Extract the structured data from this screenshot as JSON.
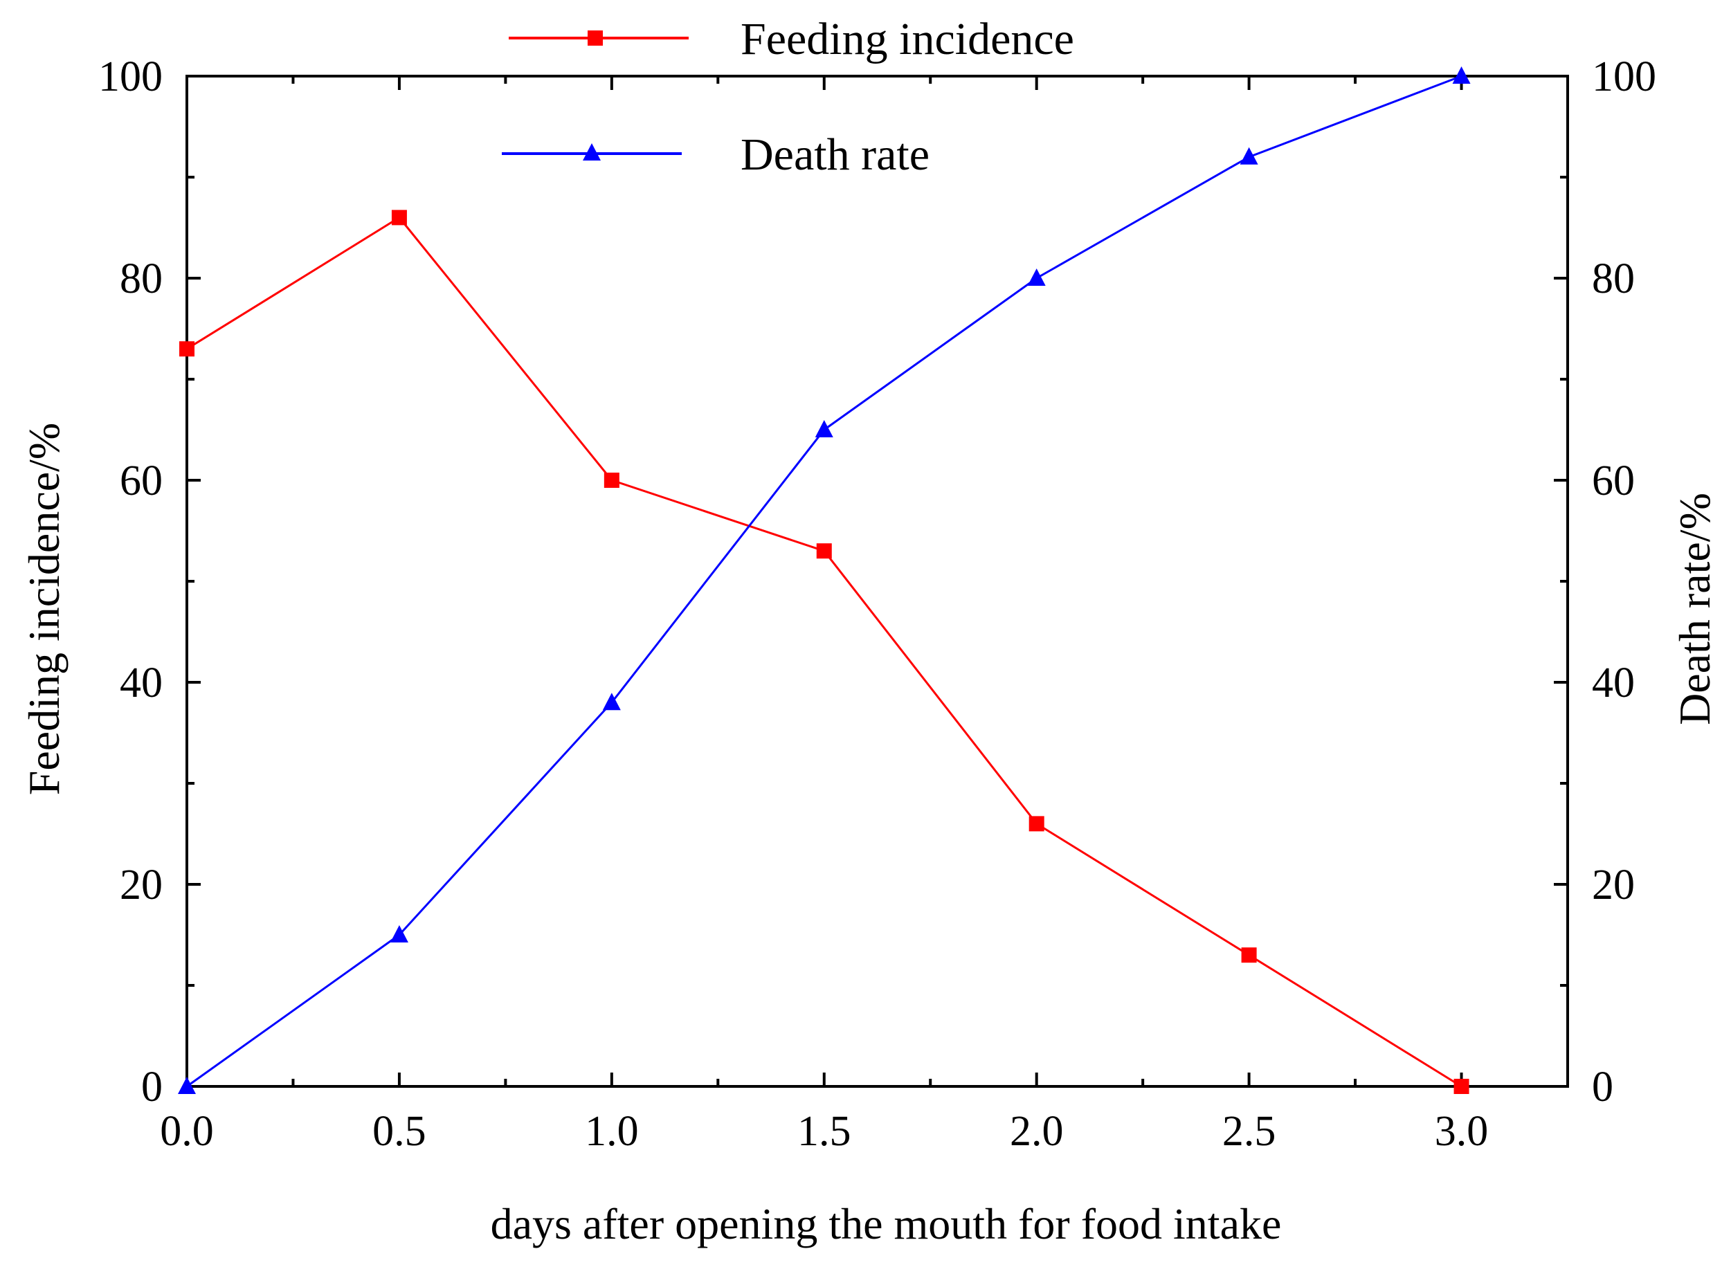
{
  "chart_data": {
    "type": "line",
    "title": "",
    "xlabel": "days after opening the mouth for food intake",
    "ylabel_left": "Feeding incidence/%",
    "ylabel_right": "Death rate/%",
    "x": [
      0.0,
      0.5,
      1.0,
      1.5,
      2.0,
      2.5,
      3.0
    ],
    "x_tick_labels": [
      "0.0",
      "0.5",
      "1.0",
      "1.5",
      "2.0",
      "2.5",
      "3.0"
    ],
    "xlim": [
      0,
      3.25
    ],
    "ylim_left": [
      0,
      100
    ],
    "ylim_right": [
      0,
      100
    ],
    "y_tick_labels_left": [
      "0",
      "20",
      "40",
      "60",
      "80",
      "100"
    ],
    "y_tick_labels_right": [
      "0",
      "20",
      "40",
      "60",
      "80",
      "100"
    ],
    "grid": false,
    "legend_position": "top-center",
    "series": [
      {
        "name": "Feeding incidence",
        "axis": "left",
        "marker": "square",
        "color": "#ff0000",
        "values": [
          73,
          86,
          60,
          53,
          26,
          13,
          0
        ]
      },
      {
        "name": "Death rate",
        "axis": "right",
        "marker": "triangle",
        "color": "#0000ff",
        "values": [
          0,
          15,
          38,
          65,
          80,
          92,
          100
        ]
      }
    ]
  }
}
